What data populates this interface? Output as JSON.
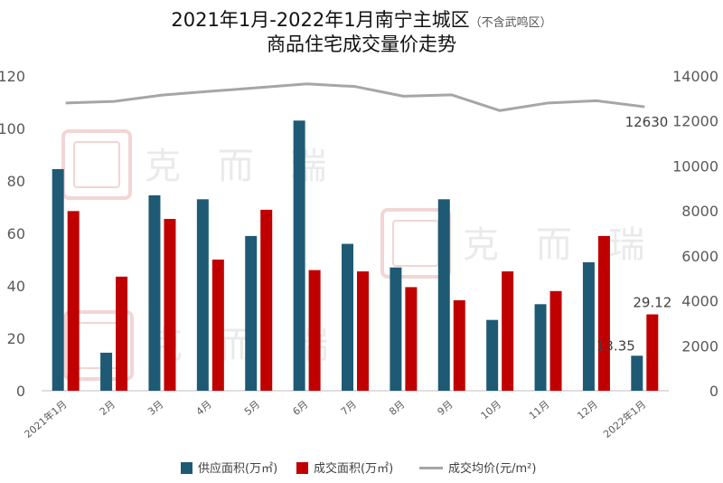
{
  "chart_data": {
    "type": "bar",
    "title_lines": [
      "2021年1月-2022年1月南宁主城区",
      "商品住宅成交量价走势"
    ],
    "title_note": "（不含武鸣区）",
    "categories": [
      "2021年1月",
      "2月",
      "3月",
      "4月",
      "5月",
      "6月",
      "7月",
      "8月",
      "9月",
      "10月",
      "11月",
      "12月",
      "2022年1月"
    ],
    "series": [
      {
        "name": "供应面积(万㎡)",
        "type": "bar",
        "axis": "left",
        "color": "#1f5a74",
        "values": [
          84.5,
          14.5,
          74.5,
          73,
          59,
          103,
          56,
          47,
          73,
          27,
          33,
          49,
          13.35
        ]
      },
      {
        "name": "成交面积(万㎡)",
        "type": "bar",
        "axis": "left",
        "color": "#c00000",
        "values": [
          68.5,
          43.5,
          65.5,
          50,
          69,
          46,
          45.5,
          39.5,
          34.5,
          45.5,
          38,
          59,
          29.12
        ]
      },
      {
        "name": "成交均价(元/m²)",
        "type": "line",
        "axis": "right",
        "color": "#a6a6a6",
        "values": [
          12800,
          12870,
          13150,
          13320,
          13480,
          13650,
          13530,
          13100,
          13160,
          12460,
          12800,
          12900,
          12630
        ]
      }
    ],
    "y_left": {
      "min": 0,
      "max": 120,
      "ticks": [
        0,
        20,
        40,
        60,
        80,
        100,
        120
      ]
    },
    "y_right": {
      "min": 0,
      "max": 14000,
      "ticks": [
        0,
        2000,
        4000,
        6000,
        8000,
        10000,
        12000,
        14000
      ]
    },
    "data_labels": {
      "supply_last": "13.35",
      "deal_last": "29.12",
      "price_last": "12630"
    },
    "legend_position": "bottom",
    "grid": false,
    "watermark": {
      "text": "克 而 瑞"
    }
  }
}
